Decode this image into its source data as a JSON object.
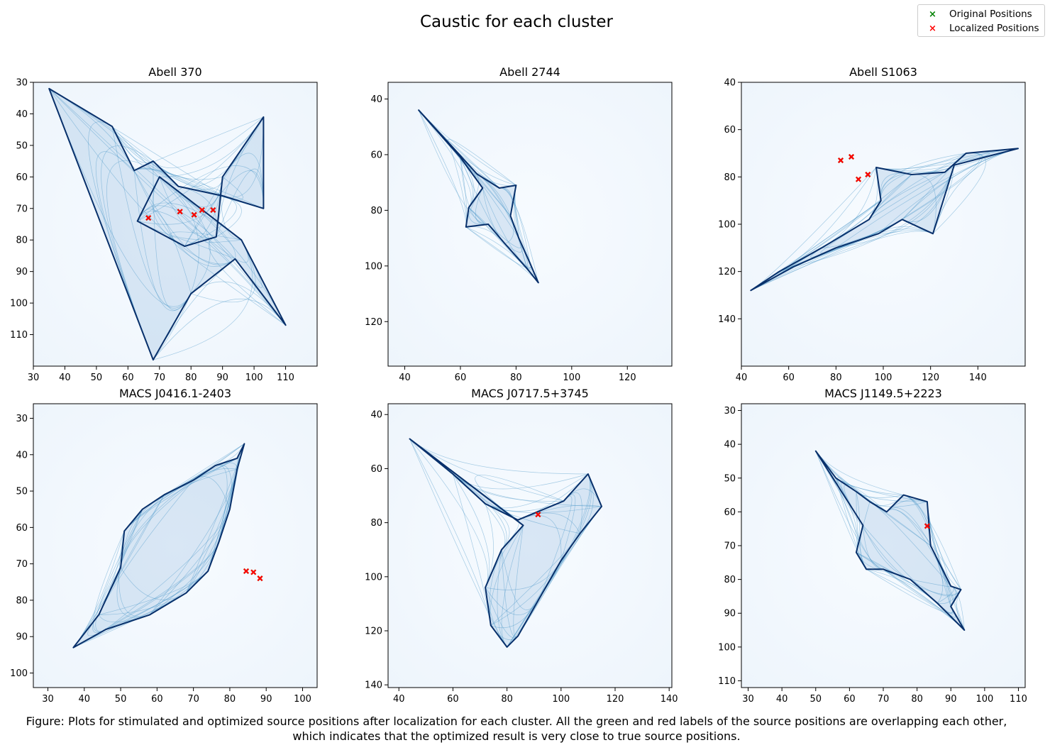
{
  "figure": {
    "suptitle": "Caustic for each cluster",
    "legend": {
      "placement": "top-right",
      "items": [
        {
          "label": "Original Positions",
          "color": "#008000",
          "marker": "x"
        },
        {
          "label": "Localized Positions",
          "color": "#ff0000",
          "marker": "x"
        }
      ]
    },
    "caption_line1": "Figure: Plots for stimulated and optimized source positions after localization for each cluster. All the green and red labels of the source positions are overlapping each other,",
    "caption_line2": "which indicates that the optimized result is very close to true source positions.",
    "colormap": "Blues",
    "caustic_color": "#08306b"
  },
  "chart_data": [
    {
      "type": "scatter",
      "title": "Abell 370",
      "xlim": [
        30,
        120
      ],
      "ylim": [
        120,
        30
      ],
      "y_inverted": true,
      "xticks": [
        30,
        40,
        50,
        60,
        70,
        80,
        90,
        100,
        110
      ],
      "yticks": [
        30,
        40,
        50,
        60,
        70,
        80,
        90,
        100,
        110
      ],
      "series": [
        {
          "name": "Original Positions",
          "color": "#008000",
          "points": [
            [
              66.5,
              73
            ],
            [
              76.5,
              71
            ],
            [
              81,
              72
            ],
            [
              83.5,
              70.5
            ],
            [
              87,
              70.5
            ]
          ]
        },
        {
          "name": "Localized Positions",
          "color": "#ff0000",
          "points": [
            [
              66.5,
              73
            ],
            [
              76.5,
              71
            ],
            [
              81,
              72
            ],
            [
              83.5,
              70.5
            ],
            [
              87,
              70.5
            ]
          ]
        }
      ],
      "caustic": [
        [
          35,
          32
        ],
        [
          55,
          44
        ],
        [
          62,
          58
        ],
        [
          68,
          55
        ],
        [
          76,
          63
        ],
        [
          90,
          66
        ],
        [
          103,
          70
        ],
        [
          103,
          41
        ],
        [
          90,
          60
        ],
        [
          88,
          79
        ],
        [
          78,
          82
        ],
        [
          63,
          74
        ],
        [
          70,
          60
        ],
        [
          96,
          80
        ],
        [
          110,
          107
        ],
        [
          94,
          86
        ],
        [
          80,
          97
        ],
        [
          68,
          118
        ]
      ]
    },
    {
      "type": "scatter",
      "title": "Abell 2744",
      "xlim": [
        34,
        136
      ],
      "ylim": [
        136,
        34
      ],
      "y_inverted": true,
      "xticks": [
        40,
        60,
        80,
        100,
        120
      ],
      "yticks": [
        40,
        60,
        80,
        100,
        120
      ],
      "series": [
        {
          "name": "Original Positions",
          "color": "#008000",
          "points": []
        },
        {
          "name": "Localized Positions",
          "color": "#ff0000",
          "points": []
        }
      ],
      "caustic": [
        [
          45,
          44
        ],
        [
          56,
          56
        ],
        [
          66,
          67
        ],
        [
          74,
          72
        ],
        [
          80,
          71
        ],
        [
          78,
          82
        ],
        [
          81,
          90
        ],
        [
          85,
          99
        ],
        [
          88,
          106
        ],
        [
          84,
          101
        ],
        [
          76,
          92
        ],
        [
          70,
          85
        ],
        [
          62,
          86
        ],
        [
          63,
          79
        ],
        [
          68,
          72
        ],
        [
          60,
          61
        ]
      ]
    },
    {
      "type": "scatter",
      "title": "Abell S1063",
      "xlim": [
        40,
        160
      ],
      "ylim": [
        160,
        40
      ],
      "y_inverted": true,
      "xticks": [
        40,
        60,
        80,
        100,
        120,
        140
      ],
      "yticks": [
        40,
        60,
        80,
        100,
        120,
        140
      ],
      "series": [
        {
          "name": "Original Positions",
          "color": "#008000",
          "points": [
            [
              82,
              73
            ],
            [
              86.5,
              71.5
            ],
            [
              89.5,
              81
            ],
            [
              93.5,
              79
            ]
          ]
        },
        {
          "name": "Localized Positions",
          "color": "#ff0000",
          "points": [
            [
              82,
              73
            ],
            [
              86.5,
              71.5
            ],
            [
              89.5,
              81
            ],
            [
              93.5,
              79
            ]
          ]
        }
      ],
      "caustic": [
        [
          97,
          76
        ],
        [
          112,
          79
        ],
        [
          126,
          78
        ],
        [
          135,
          70
        ],
        [
          157,
          68
        ],
        [
          130,
          75
        ],
        [
          121,
          104
        ],
        [
          108,
          98
        ],
        [
          98,
          104
        ],
        [
          80,
          110
        ],
        [
          62,
          118
        ],
        [
          44,
          128
        ],
        [
          56,
          120
        ],
        [
          74,
          110
        ],
        [
          94,
          98
        ],
        [
          99,
          90
        ]
      ]
    },
    {
      "type": "scatter",
      "title": "MACS J0416.1-2403",
      "xlim": [
        26,
        104
      ],
      "ylim": [
        104,
        26
      ],
      "y_inverted": true,
      "xticks": [
        30,
        40,
        50,
        60,
        70,
        80,
        90,
        100
      ],
      "yticks": [
        30,
        40,
        50,
        60,
        70,
        80,
        90,
        100
      ],
      "series": [
        {
          "name": "Original Positions",
          "color": "#008000",
          "points": [
            [
              84.5,
              72
            ],
            [
              86.5,
              72.3
            ],
            [
              88.3,
              74
            ]
          ]
        },
        {
          "name": "Localized Positions",
          "color": "#ff0000",
          "points": [
            [
              84.5,
              72
            ],
            [
              86.5,
              72.3
            ],
            [
              88.3,
              74
            ]
          ]
        }
      ],
      "caustic": [
        [
          37,
          93
        ],
        [
          44,
          84
        ],
        [
          50,
          71
        ],
        [
          51,
          61
        ],
        [
          56,
          55
        ],
        [
          62,
          51
        ],
        [
          70,
          47
        ],
        [
          76,
          43
        ],
        [
          82,
          41
        ],
        [
          84,
          37
        ],
        [
          82,
          44
        ],
        [
          80,
          55
        ],
        [
          77,
          64
        ],
        [
          74,
          72
        ],
        [
          68,
          78
        ],
        [
          58,
          84
        ],
        [
          46,
          88
        ]
      ]
    },
    {
      "type": "scatter",
      "title": "MACS J0717.5+3745",
      "xlim": [
        36,
        141
      ],
      "ylim": [
        141,
        36
      ],
      "y_inverted": true,
      "xticks": [
        40,
        60,
        80,
        100,
        120,
        140
      ],
      "yticks": [
        40,
        60,
        80,
        100,
        120,
        140
      ],
      "series": [
        {
          "name": "Original Positions",
          "color": "#008000",
          "points": [
            [
              91.5,
              77
            ]
          ]
        },
        {
          "name": "Localized Positions",
          "color": "#ff0000",
          "points": [
            [
              91.5,
              77
            ]
          ]
        }
      ],
      "caustic": [
        [
          44,
          49
        ],
        [
          60,
          62
        ],
        [
          72,
          73
        ],
        [
          84,
          79
        ],
        [
          101,
          72
        ],
        [
          110,
          62
        ],
        [
          115,
          74
        ],
        [
          107,
          84
        ],
        [
          100,
          94
        ],
        [
          92,
          108
        ],
        [
          84,
          122
        ],
        [
          80,
          126
        ],
        [
          74,
          118
        ],
        [
          72,
          104
        ],
        [
          78,
          90
        ],
        [
          86,
          81
        ]
      ]
    },
    {
      "type": "scatter",
      "title": "MACS J1149.5+2223",
      "xlim": [
        28,
        112
      ],
      "ylim": [
        112,
        28
      ],
      "y_inverted": true,
      "xticks": [
        30,
        40,
        50,
        60,
        70,
        80,
        90,
        100,
        110
      ],
      "yticks": [
        30,
        40,
        50,
        60,
        70,
        80,
        90,
        100,
        110
      ],
      "series": [
        {
          "name": "Original Positions",
          "color": "#008000",
          "points": [
            [
              83,
              64.2
            ]
          ]
        },
        {
          "name": "Localized Positions",
          "color": "#ff0000",
          "points": [
            [
              83,
              64.2
            ]
          ]
        }
      ],
      "caustic": [
        [
          50,
          42
        ],
        [
          56,
          50
        ],
        [
          62,
          54
        ],
        [
          66,
          57
        ],
        [
          71,
          60
        ],
        [
          76,
          55
        ],
        [
          83,
          57
        ],
        [
          84,
          70
        ],
        [
          90,
          82
        ],
        [
          93,
          83
        ],
        [
          90,
          88
        ],
        [
          94,
          95
        ],
        [
          86,
          87
        ],
        [
          78,
          80
        ],
        [
          70,
          77
        ],
        [
          65,
          77
        ],
        [
          62,
          72
        ],
        [
          64,
          64
        ]
      ]
    }
  ]
}
